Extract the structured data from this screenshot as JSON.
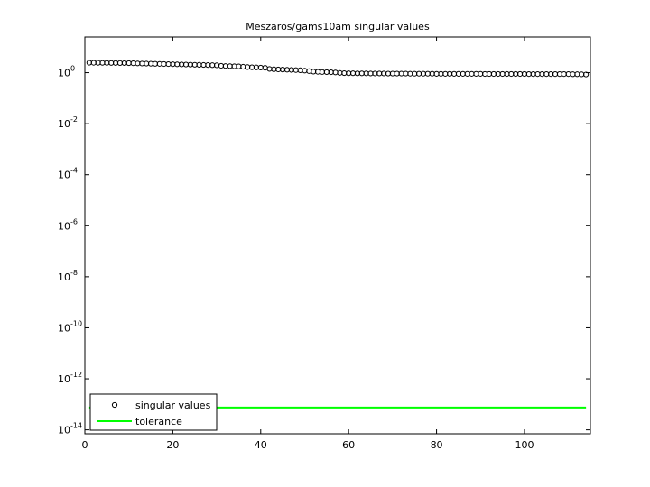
{
  "chart_data": {
    "type": "scatter",
    "title": "Meszaros/gams10am singular values",
    "xlim": [
      0,
      115
    ],
    "xticks": [
      0,
      20,
      40,
      60,
      80,
      100
    ],
    "ylim": [
      7e-15,
      25
    ],
    "log_y": true,
    "yticks": [
      {
        "value": 1,
        "label": "10^0"
      },
      {
        "value": 0.01,
        "label": "10^-2"
      },
      {
        "value": 0.0001,
        "label": "10^-4"
      },
      {
        "value": 1e-06,
        "label": "10^-6"
      },
      {
        "value": 1e-08,
        "label": "10^-8"
      },
      {
        "value": 1e-10,
        "label": "10^-10"
      },
      {
        "value": 1e-12,
        "label": "10^-12"
      },
      {
        "value": 1e-14,
        "label": "10^-14"
      }
    ],
    "legend": "lower left",
    "series": [
      {
        "name": "singular values",
        "color": "#000000",
        "style": "marker",
        "x": [
          1,
          2,
          3,
          4,
          5,
          6,
          7,
          8,
          9,
          10,
          11,
          12,
          13,
          14,
          15,
          16,
          17,
          18,
          19,
          20,
          21,
          22,
          23,
          24,
          25,
          26,
          27,
          28,
          29,
          30,
          31,
          32,
          33,
          34,
          35,
          36,
          37,
          38,
          39,
          40,
          41,
          42,
          43,
          44,
          45,
          46,
          47,
          48,
          49,
          50,
          51,
          52,
          53,
          54,
          55,
          56,
          57,
          58,
          59,
          60,
          61,
          62,
          63,
          64,
          65,
          66,
          67,
          68,
          69,
          70,
          71,
          72,
          73,
          74,
          75,
          76,
          77,
          78,
          79,
          80,
          81,
          82,
          83,
          84,
          85,
          86,
          87,
          88,
          89,
          90,
          91,
          92,
          93,
          94,
          95,
          96,
          97,
          98,
          99,
          100,
          101,
          102,
          103,
          104,
          105,
          106,
          107,
          108,
          109,
          110,
          111,
          112,
          113,
          114
        ],
        "values": [
          2.45,
          2.44,
          2.43,
          2.42,
          2.41,
          2.4,
          2.39,
          2.38,
          2.37,
          2.36,
          2.34,
          2.3,
          2.28,
          2.26,
          2.24,
          2.22,
          2.2,
          2.18,
          2.16,
          2.14,
          2.12,
          2.1,
          2.08,
          2.06,
          2.04,
          2.02,
          2.0,
          1.98,
          1.96,
          1.94,
          1.85,
          1.82,
          1.8,
          1.78,
          1.76,
          1.7,
          1.65,
          1.62,
          1.6,
          1.58,
          1.55,
          1.4,
          1.36,
          1.34,
          1.32,
          1.3,
          1.28,
          1.26,
          1.24,
          1.2,
          1.15,
          1.1,
          1.08,
          1.06,
          1.05,
          1.04,
          1.02,
          0.98,
          0.96,
          0.95,
          0.95,
          0.94,
          0.94,
          0.94,
          0.93,
          0.93,
          0.93,
          0.93,
          0.92,
          0.92,
          0.92,
          0.92,
          0.92,
          0.91,
          0.91,
          0.91,
          0.91,
          0.91,
          0.91,
          0.9,
          0.9,
          0.9,
          0.9,
          0.9,
          0.9,
          0.9,
          0.9,
          0.9,
          0.9,
          0.9,
          0.89,
          0.89,
          0.89,
          0.89,
          0.89,
          0.89,
          0.89,
          0.89,
          0.89,
          0.89,
          0.88,
          0.88,
          0.88,
          0.88,
          0.88,
          0.88,
          0.88,
          0.88,
          0.88,
          0.88,
          0.87,
          0.87,
          0.86,
          0.85
        ]
      },
      {
        "name": "tolerance",
        "color": "#00ff00",
        "style": "line",
        "x": [
          1,
          114
        ],
        "values": [
          7.5e-14,
          7.5e-14
        ]
      }
    ]
  }
}
